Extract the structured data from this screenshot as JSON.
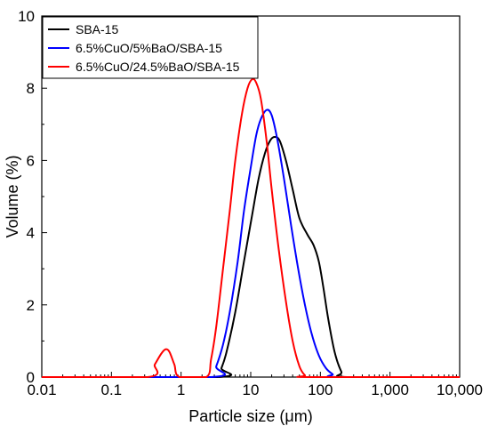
{
  "chart_data": {
    "type": "line",
    "title": "",
    "xlabel": "Particle size (μm)",
    "ylabel": "Volume (%)",
    "x_scale": "log",
    "xlim": [
      0.01,
      10000
    ],
    "ylim": [
      0,
      10
    ],
    "x_ticks": [
      0.01,
      0.1,
      1,
      10,
      100,
      1000,
      10000
    ],
    "x_tick_labels": [
      "0.01",
      "0.1",
      "1",
      "10",
      "100",
      "1,000",
      "10,000"
    ],
    "y_ticks": [
      0,
      2,
      4,
      6,
      8,
      10
    ],
    "y_tick_labels": [
      "0",
      "2",
      "4",
      "6",
      "8",
      "10"
    ],
    "grid": false,
    "legend_position": "top-left",
    "series": [
      {
        "name": "SBA-15",
        "color": "#000000",
        "points": [
          [
            0.01,
            0
          ],
          [
            3.3,
            0
          ],
          [
            3.8,
            0.25
          ],
          [
            4.5,
            0.7
          ],
          [
            6,
            1.8
          ],
          [
            8,
            3.2
          ],
          [
            10.5,
            4.5
          ],
          [
            13,
            5.5
          ],
          [
            16,
            6.2
          ],
          [
            19,
            6.55
          ],
          [
            22,
            6.65
          ],
          [
            26,
            6.55
          ],
          [
            32,
            6.0
          ],
          [
            40,
            5.2
          ],
          [
            50,
            4.4
          ],
          [
            65,
            3.95
          ],
          [
            80,
            3.65
          ],
          [
            95,
            3.2
          ],
          [
            110,
            2.5
          ],
          [
            130,
            1.6
          ],
          [
            160,
            0.7
          ],
          [
            200,
            0.15
          ],
          [
            240,
            0
          ],
          [
            10000,
            0
          ]
        ]
      },
      {
        "name": "6.5%CuO/5%BaO/SBA-15",
        "color": "#0000ff",
        "points": [
          [
            0.01,
            0
          ],
          [
            2.7,
            0
          ],
          [
            3.2,
            0.3
          ],
          [
            4,
            0.9
          ],
          [
            5,
            1.8
          ],
          [
            6.5,
            3.2
          ],
          [
            8,
            4.6
          ],
          [
            10,
            5.8
          ],
          [
            12,
            6.7
          ],
          [
            14,
            7.15
          ],
          [
            17,
            7.4
          ],
          [
            20,
            7.25
          ],
          [
            24,
            6.6
          ],
          [
            30,
            5.5
          ],
          [
            38,
            4.2
          ],
          [
            48,
            3.0
          ],
          [
            60,
            2.0
          ],
          [
            75,
            1.2
          ],
          [
            95,
            0.6
          ],
          [
            120,
            0.25
          ],
          [
            150,
            0.08
          ],
          [
            180,
            0
          ],
          [
            10000,
            0
          ]
        ]
      },
      {
        "name": "6.5%CuO/24.5%BaO/SBA-15",
        "color": "#ff0000",
        "points": [
          [
            0.01,
            0
          ],
          [
            0.33,
            0
          ],
          [
            0.42,
            0.35
          ],
          [
            0.52,
            0.65
          ],
          [
            0.6,
            0.77
          ],
          [
            0.68,
            0.7
          ],
          [
            0.8,
            0.35
          ],
          [
            0.95,
            0
          ],
          [
            2.3,
            0
          ],
          [
            2.7,
            0.5
          ],
          [
            3.2,
            1.4
          ],
          [
            4,
            3.0
          ],
          [
            5,
            4.6
          ],
          [
            6,
            6.0
          ],
          [
            7.5,
            7.3
          ],
          [
            9,
            8.0
          ],
          [
            10.5,
            8.25
          ],
          [
            12,
            8.15
          ],
          [
            14,
            7.7
          ],
          [
            17,
            6.5
          ],
          [
            20,
            5.2
          ],
          [
            25,
            3.6
          ],
          [
            32,
            2.1
          ],
          [
            40,
            1.0
          ],
          [
            50,
            0.3
          ],
          [
            60,
            0.05
          ],
          [
            70,
            0
          ],
          [
            10000,
            0
          ]
        ]
      }
    ]
  }
}
